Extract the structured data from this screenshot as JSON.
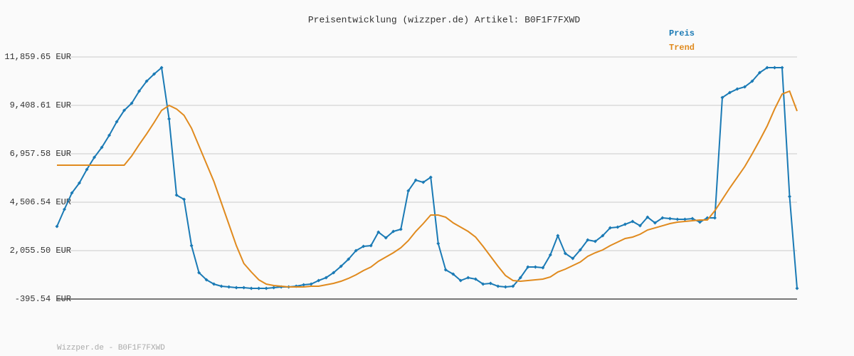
{
  "chart_data": {
    "type": "line",
    "title": "Preisentwicklung (wizzper.de) Artikel: B0F1F7FXWD",
    "footer": "Wizzper.de - B0F1F7FXWD",
    "categories": [
      null,
      null,
      null,
      null,
      null,
      null,
      null,
      null,
      null,
      null,
      null,
      null,
      null,
      null,
      null,
      null,
      null,
      null,
      null,
      null,
      null,
      null,
      null,
      null,
      null,
      null,
      null,
      null,
      null,
      null,
      null,
      null,
      null,
      null,
      null,
      null,
      null,
      null,
      null,
      null,
      null,
      null,
      null,
      null,
      null,
      null,
      null,
      null,
      null,
      null,
      null,
      null,
      null,
      null,
      null,
      null,
      null,
      null,
      null,
      null,
      null,
      null,
      null,
      null,
      null,
      null,
      null,
      null,
      null,
      null,
      null,
      null,
      null,
      null,
      null,
      null,
      null,
      null,
      null,
      null,
      null,
      null,
      null,
      null,
      null,
      null,
      null,
      null,
      null,
      null,
      null,
      null,
      null,
      null,
      null,
      null,
      null,
      null,
      null,
      null
    ],
    "series": [
      {
        "name": "Preis",
        "color": "#1a7ab5",
        "markers": true,
        "values": [
          3280,
          4145,
          4974,
          5479,
          6164,
          6777,
          7281,
          7894,
          8579,
          9155,
          9516,
          10128,
          10633,
          10993,
          11318,
          8723,
          4866,
          4650,
          2307,
          938,
          578,
          361,
          253,
          217,
          181,
          181,
          145,
          145,
          145,
          181,
          217,
          217,
          253,
          325,
          361,
          541,
          686,
          938,
          1262,
          1623,
          2055,
          2271,
          2307,
          2992,
          2704,
          3028,
          3136,
          5083,
          5623,
          5515,
          5767,
          2416,
          1082,
          866,
          541,
          686,
          614,
          361,
          397,
          253,
          217,
          253,
          686,
          1226,
          1226,
          1190,
          1839,
          2812,
          1911,
          1659,
          2091,
          2596,
          2524,
          2812,
          3208,
          3244,
          3389,
          3533,
          3316,
          3749,
          3461,
          3713,
          3677,
          3641,
          3641,
          3677,
          3497,
          3713,
          3713,
          9804,
          10056,
          10237,
          10345,
          10633,
          11066,
          11318,
          11318,
          11318,
          4794,
          145
        ]
      },
      {
        "name": "Trend",
        "color": "#e08a1e",
        "markers": false,
        "values": [
          6380,
          6380,
          6380,
          6380,
          6380,
          6380,
          6380,
          6380,
          6380,
          6380,
          6849,
          7425,
          7966,
          8543,
          9155,
          9408,
          9227,
          8903,
          8254,
          7354,
          6453,
          5551,
          4470,
          3389,
          2307,
          1406,
          974,
          578,
          361,
          289,
          253,
          217,
          217,
          217,
          253,
          253,
          325,
          397,
          505,
          650,
          830,
          1046,
          1226,
          1515,
          1731,
          1947,
          2199,
          2560,
          3028,
          3425,
          3857,
          3857,
          3749,
          3461,
          3244,
          3028,
          2740,
          2271,
          1767,
          1262,
          794,
          541,
          505,
          541,
          578,
          614,
          722,
          974,
          1118,
          1298,
          1479,
          1767,
          1947,
          2091,
          2307,
          2488,
          2668,
          2740,
          2884,
          3100,
          3208,
          3316,
          3425,
          3497,
          3533,
          3569,
          3605,
          3605,
          4073,
          4650,
          5227,
          5767,
          6308,
          6957,
          7642,
          8363,
          9227,
          9984,
          10128,
          9120
        ]
      }
    ],
    "ylim": [
      -395.54,
      11859.65
    ],
    "yticks": [
      {
        "value": -395.54,
        "label": "-395.54 EUR"
      },
      {
        "value": 2055.5,
        "label": "2,055.50 EUR"
      },
      {
        "value": 4506.54,
        "label": "4,506.54 EUR"
      },
      {
        "value": 6957.58,
        "label": "6,957.58 EUR"
      },
      {
        "value": 9408.61,
        "label": "9,408.61 EUR"
      },
      {
        "value": 11859.65,
        "label": "11,859.65 EUR"
      }
    ],
    "grid": true
  }
}
